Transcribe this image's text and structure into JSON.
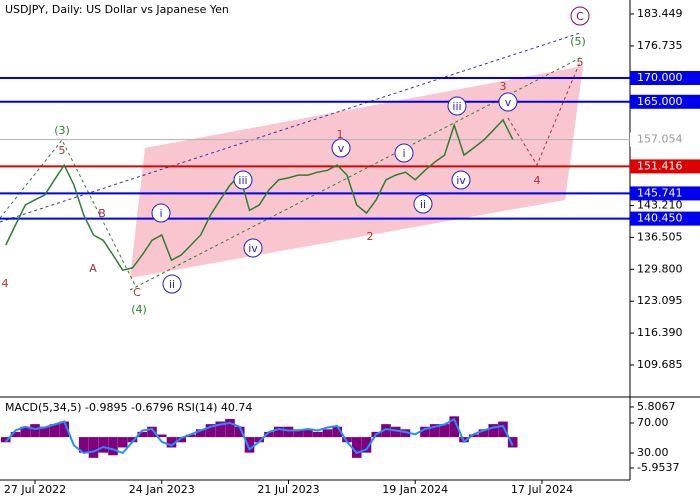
{
  "chart_data": [
    {
      "type": "line",
      "title": "USDJPY, Daily:  US Dollar vs Japanese Yen",
      "color": "#2e7d32",
      "xlim": [
        -0.59,
        64.03
      ],
      "ylim": [
        103.38,
        186.39
      ],
      "values": [
        134.9,
        139.1,
        143.3,
        144.4,
        145.4,
        148.6,
        151.7,
        147.5,
        141.2,
        137.0,
        135.9,
        132.8,
        129.6,
        130.1,
        132.8,
        135.9,
        137.0,
        131.7,
        132.8,
        134.9,
        137.0,
        141.2,
        144.4,
        147.5,
        149.6,
        142.2,
        143.3,
        146.5,
        148.6,
        149.0,
        149.6,
        149.6,
        150.2,
        150.6,
        151.7,
        149.6,
        143.3,
        141.6,
        144.4,
        148.6,
        149.6,
        150.2,
        148.6,
        150.6,
        152.3,
        153.8,
        160.1,
        153.8,
        155.3,
        156.9,
        159.0,
        161.2,
        157.1
      ],
      "yticks": [
        183.449,
        176.735,
        {
          "value": 143.21,
          "label": "143.210"
        },
        136.505,
        {
          "value": 129.8,
          "label": "129.800"
        },
        123.095,
        {
          "value": 116.39,
          "label": "116.390"
        },
        109.685
      ],
      "levels": [
        {
          "value": 170,
          "label": "170.000",
          "color": "#0000ee"
        },
        {
          "value": 165,
          "label": "165.000",
          "color": "#0000ee"
        },
        {
          "value": 157.054,
          "color": "#b0b0b0"
        },
        {
          "value": 151.416,
          "color": "#dd0000"
        },
        {
          "value": 145.741,
          "color": "#0000ee"
        },
        {
          "value": 140.45,
          "label": "140.450",
          "color": "#0000ee"
        }
      ],
      "wave_labels": [
        "(3)",
        "5",
        "B",
        "A",
        "4",
        "C",
        "(4)",
        "i",
        "ii",
        "iii",
        "iv",
        "v",
        "1",
        "2",
        "i",
        "ii",
        "iii",
        "iv",
        "v",
        "3",
        "4",
        "5",
        "(5)",
        "C"
      ]
    },
    {
      "type": "bar",
      "title": "MACD(5,34,5) -0.9895 -0.6796 RSI(14) 40.74",
      "xlim": [
        -0.59,
        64.03
      ],
      "ylim": [
        -8.27,
        7.15
      ],
      "y2lim": [
        -6,
        100.7
      ],
      "yticks": [
        5.8067,
        -5.9537
      ],
      "y2ticks": [
        {
          "value": 70,
          "label": "70.00"
        },
        {
          "value": 30,
          "label": "30.00"
        }
      ],
      "xticks": [
        {
          "value": 3,
          "label": "27 Jul 2022"
        },
        {
          "value": 16,
          "label": "24 Jan 2023"
        },
        {
          "value": 29,
          "label": "21 Jul 2023"
        },
        {
          "value": 42,
          "label": "19 Jan 2024"
        },
        {
          "value": 55,
          "label": "17 Jul 2024"
        }
      ],
      "series": [
        {
          "color": "#800080",
          "values": [
            -1,
            1,
            2,
            2.5,
            2,
            2.5,
            3,
            0,
            -3,
            -4,
            -3,
            -3.5,
            -2,
            -1,
            1,
            2,
            0.5,
            -2,
            -1,
            0.5,
            1.5,
            2.5,
            3,
            3.5,
            2,
            -3,
            -1,
            1,
            2,
            2,
            1.5,
            1.5,
            1,
            1.5,
            2,
            -1,
            -4,
            -3,
            1,
            2.5,
            2,
            1.5,
            0,
            2,
            2.5,
            2.5,
            4,
            -1,
            0.5,
            1.5,
            2.5,
            3,
            -2
          ]
        },
        {
          "color": "#1e90ff",
          "axis": "y2",
          "values": [
            45,
            60,
            65,
            62,
            64,
            68,
            72,
            40,
            30,
            32,
            38,
            35,
            30,
            45,
            60,
            62,
            45,
            40,
            50,
            55,
            60,
            65,
            68,
            70,
            65,
            35,
            45,
            58,
            62,
            60,
            60,
            62,
            60,
            64,
            66,
            45,
            30,
            35,
            55,
            62,
            60,
            58,
            55,
            62,
            65,
            68,
            75,
            45,
            55,
            60,
            64,
            66,
            40
          ]
        }
      ]
    }
  ]
}
